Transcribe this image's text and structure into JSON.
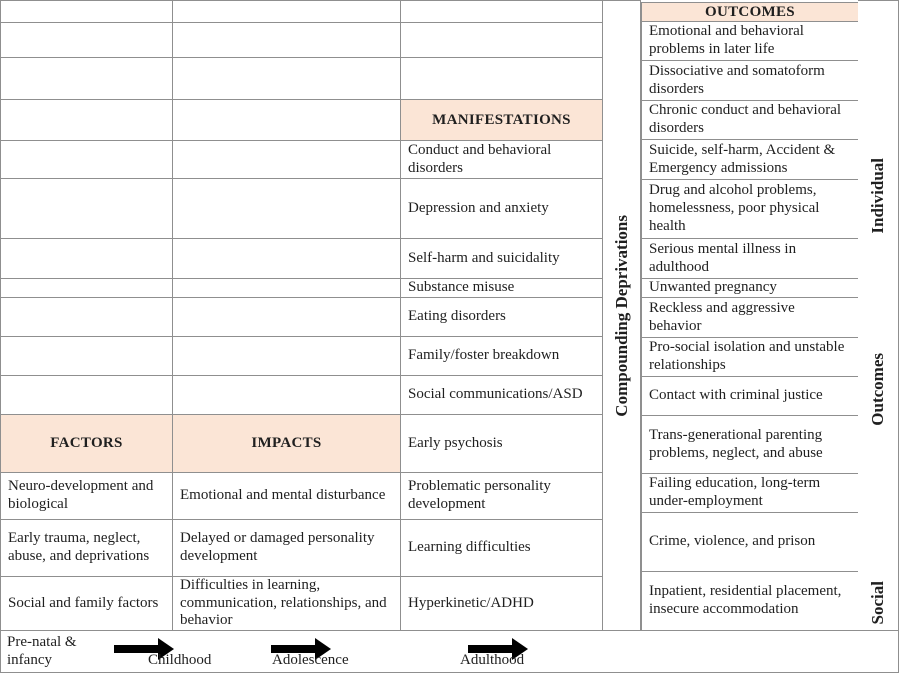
{
  "left_grid": {
    "headers": {
      "factors": "FACTORS",
      "impacts": "IMPACTS",
      "manifestations": "MANIFESTATIONS"
    },
    "factors_rows": [
      "Neuro-development and biological",
      "Early trauma, neglect, abuse, and deprivations",
      "Social and family factors"
    ],
    "impacts_rows": [
      "Emotional and mental disturbance",
      "Delayed or damaged personality development",
      "Difficulties in learning, communication, relationships, and behavior"
    ],
    "manifestations_rows": [
      "Conduct and behavioral disorders",
      "Depression and anxiety",
      "Self-harm and suicidality",
      "Substance misuse",
      "Eating disorders",
      "Family/foster breakdown",
      "Social communications/ASD",
      "Early psychosis",
      "Problematic personality development",
      "Learning difficulties",
      "Hyperkinetic/ADHD"
    ]
  },
  "compounding_strip": {
    "label": "Compounding Deprivations"
  },
  "outcomes": {
    "header": "OUTCOMES",
    "items": [
      "Emotional and behavioral problems in later life",
      "Dissociative and somatoform disorders",
      "Chronic conduct and behavioral disorders",
      "Suicide, self-harm, Accident & Emergency admissions",
      "Drug and alcohol problems, homelessness, poor physical health",
      "Serious mental illness in adulthood",
      "Unwanted pregnancy",
      "Reckless and aggressive behavior",
      "Pro-social isolation and unstable relationships",
      "Contact with criminal justice",
      "Trans-generational parenting problems, neglect, and abuse",
      "Failing education, long-term under-employment",
      "Crime, violence, and prison",
      "Inpatient, residential placement, insecure accommodation"
    ]
  },
  "right_labels": {
    "individual": "Individual",
    "outcomes": "Outcomes",
    "social": "Social"
  },
  "timeline": {
    "stages": [
      "Pre-natal & infancy",
      "Childhood",
      "Adolescence",
      "Adulthood"
    ]
  },
  "colors": {
    "header_fill": "#FBE5D6",
    "border": "#8F8F8F",
    "text": "#1F1F1F",
    "arrow": "#000000"
  }
}
